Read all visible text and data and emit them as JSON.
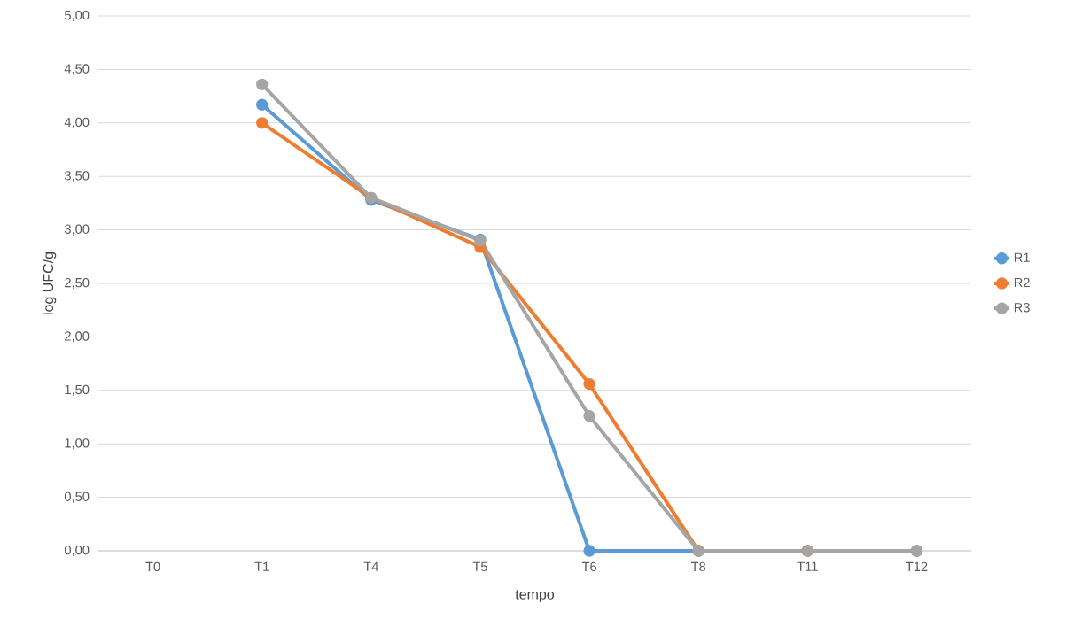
{
  "chart_data": {
    "type": "line",
    "xlabel": "tempo",
    "ylabel": "log UFC/g",
    "categories": [
      "T0",
      "T1",
      "T4",
      "T5",
      "T6",
      "T8",
      "T11",
      "T12"
    ],
    "series": [
      {
        "name": "R1",
        "color": "#5b9bd5",
        "values": [
          null,
          4.17,
          3.28,
          2.91,
          0,
          0,
          0,
          0
        ]
      },
      {
        "name": "R2",
        "color": "#ed7d31",
        "values": [
          null,
          4.0,
          3.3,
          2.84,
          1.56,
          0,
          0,
          0
        ]
      },
      {
        "name": "R3",
        "color": "#a5a5a5",
        "values": [
          null,
          4.36,
          3.3,
          2.9,
          1.26,
          0,
          0,
          0
        ]
      }
    ],
    "ylim": [
      0,
      5
    ],
    "yticks": [
      {
        "value": 0,
        "label": "0,00"
      },
      {
        "value": 0.5,
        "label": "0,50"
      },
      {
        "value": 1,
        "label": "1,00"
      },
      {
        "value": 1.5,
        "label": "1,50"
      },
      {
        "value": 2,
        "label": "2,00"
      },
      {
        "value": 2.5,
        "label": "2,50"
      },
      {
        "value": 3,
        "label": "3,00"
      },
      {
        "value": 3.5,
        "label": "3,50"
      },
      {
        "value": 4,
        "label": "4,00"
      },
      {
        "value": 4.5,
        "label": "4,50"
      },
      {
        "value": 5,
        "label": "5,00"
      }
    ],
    "grid": "y",
    "legend": "right",
    "marker": "circle",
    "line_style": "solid"
  }
}
